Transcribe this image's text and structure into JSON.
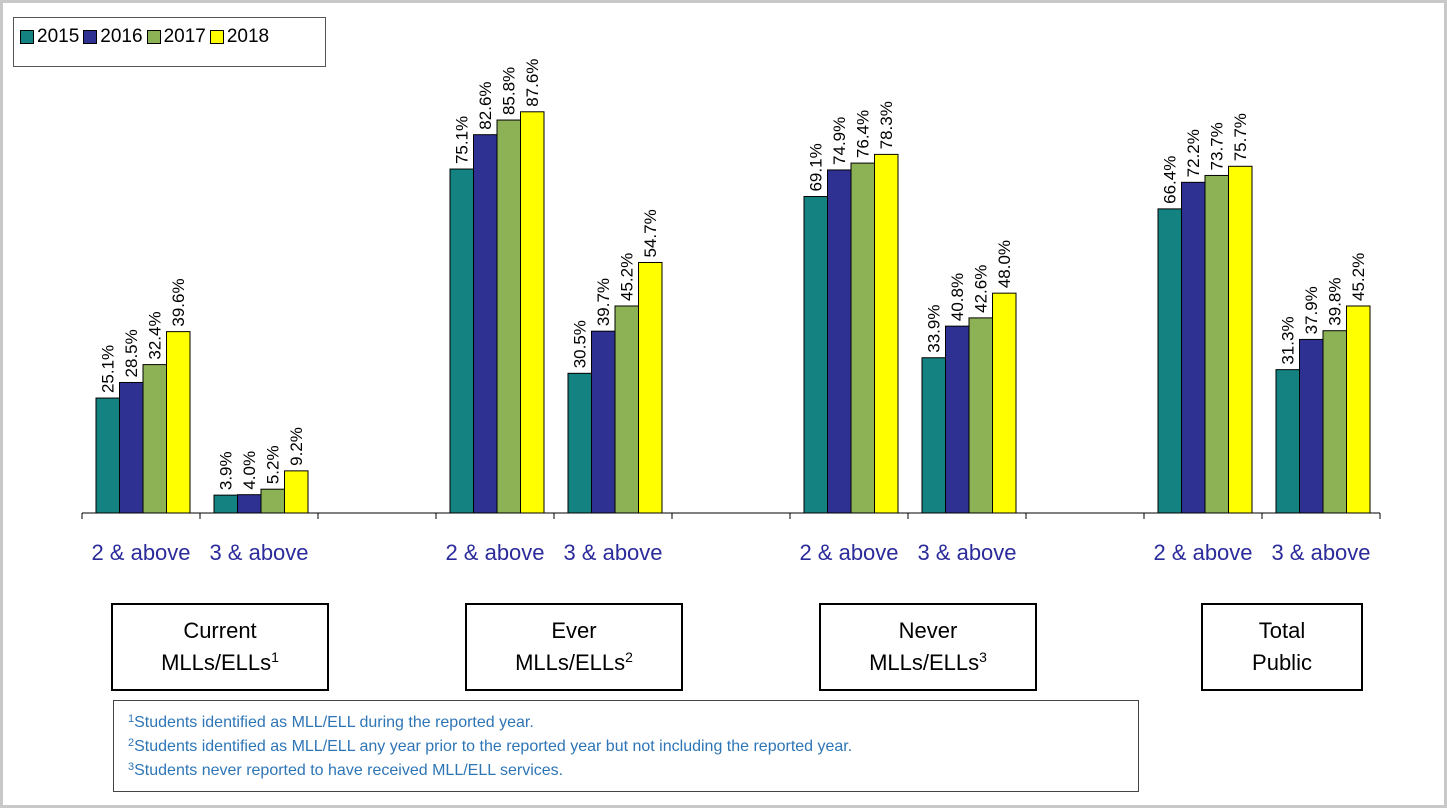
{
  "chart_data": {
    "type": "bar",
    "categories": [
      "2 & above",
      "3 & above",
      "2 & above",
      "3 & above",
      "2 & above",
      "3 & above",
      "2 & above",
      "3 & above"
    ],
    "groups": [
      {
        "name": "Current MLLs/ELLs",
        "sup": "1"
      },
      {
        "name": "Ever MLLs/ELLs",
        "sup": "2"
      },
      {
        "name": "Never MLLs/ELLs",
        "sup": "3"
      },
      {
        "name": "Total Public"
      }
    ],
    "series": [
      {
        "name": "2015",
        "color": "#138280",
        "values": [
          25.1,
          3.9,
          75.1,
          30.5,
          69.1,
          33.9,
          66.4,
          31.3
        ],
        "value_labels": [
          "25.1%",
          "3.9%",
          "75.1%",
          "30.5%",
          "69.1%",
          "33.9%",
          "66.4%",
          "31.3%"
        ]
      },
      {
        "name": "2016",
        "color": "#2e3192",
        "values": [
          28.5,
          4.0,
          82.6,
          39.7,
          74.9,
          40.8,
          72.2,
          37.9
        ],
        "value_labels": [
          "28.5%",
          "4.0%",
          "82.6%",
          "39.7%",
          "74.9%",
          "40.8%",
          "72.2%",
          "37.9%"
        ]
      },
      {
        "name": "2017",
        "color": "#8db255",
        "values": [
          32.4,
          5.2,
          85.8,
          45.2,
          76.4,
          42.6,
          73.7,
          39.8
        ],
        "value_labels": [
          "32.4%",
          "5.2%",
          "85.8%",
          "45.2%",
          "76.4%",
          "42.6%",
          "73.7%",
          "39.8%"
        ]
      },
      {
        "name": "2018",
        "color": "#ffff00",
        "values": [
          39.6,
          9.2,
          87.6,
          54.7,
          78.3,
          48.0,
          75.7,
          45.2
        ],
        "value_labels": [
          "39.6%",
          "9.2%",
          "87.6%",
          "54.7%",
          "78.3%",
          "48.0%",
          "75.7%",
          "45.2%"
        ]
      }
    ],
    "ylim": [
      0,
      100
    ],
    "legend": "top-left",
    "footnotes": [
      {
        "sup": "1",
        "text": "Students identified as MLL/ELL during the reported year."
      },
      {
        "sup": "2",
        "text": "Students identified as MLL/ELL any year prior to the reported year but not including the reported year."
      },
      {
        "sup": "3",
        "text": "Students never reported to have received MLL/ELL services."
      }
    ]
  }
}
